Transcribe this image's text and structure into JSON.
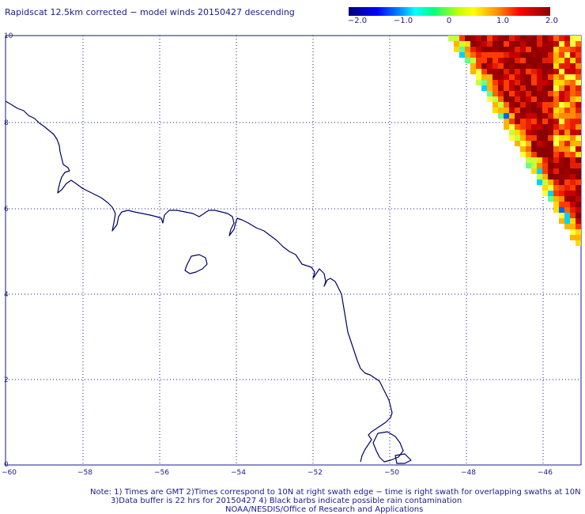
{
  "title": "Rapidscat 12.5km corrected − model winds 20150427 descending",
  "colorbar": {
    "labels": [
      "−2.0",
      "−1.0",
      "0",
      "1.0",
      "2.0"
    ],
    "min": -2.0,
    "max": 2.0
  },
  "map": {
    "lon_labels": [
      "−60",
      "−58",
      "−56",
      "−54",
      "−52",
      "−50",
      "−48",
      "−46"
    ],
    "lat_labels": [
      "0",
      "2",
      "4",
      "6",
      "8",
      "10"
    ]
  },
  "notes": {
    "line1": "Note: 1) Times are GMT 2)Times correspond to 10N at right swath edge − time is right swath for overlapping swaths at 10N",
    "line2": "3)Data buffer is 22 hrs for 20150427 4) Black barbs indicate possible rain contamination",
    "line3": "NOAA/NESDIS/Office of Research and Applications"
  },
  "colors": {
    "text": "#1a1a8c",
    "coast": "#000066"
  }
}
